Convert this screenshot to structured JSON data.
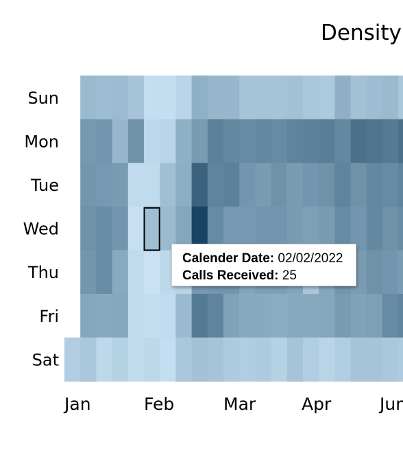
{
  "chart_data": {
    "type": "heatmap",
    "title": "Density",
    "y_categories": [
      "Sun",
      "Mon",
      "Tue",
      "Wed",
      "Thu",
      "Fri",
      "Sat"
    ],
    "x_tick_labels": [
      "Jan",
      "Feb",
      "Mar",
      "Apr",
      "Jun"
    ],
    "start_date": "2022-01-01",
    "color_scale": [
      "#cfe8fa",
      "#16425f"
    ],
    "value_range": [
      0,
      100
    ],
    "weeks": [
      [
        null,
        null,
        null,
        null,
        null,
        null,
        16
      ],
      [
        28,
        48,
        50,
        52,
        50,
        40,
        20
      ],
      [
        26,
        50,
        48,
        55,
        55,
        38,
        10
      ],
      [
        27,
        30,
        46,
        50,
        38,
        40,
        14
      ],
      [
        22,
        52,
        8,
        5,
        8,
        8,
        8
      ],
      [
        6,
        10,
        8,
        25,
        4,
        6,
        10
      ],
      [
        6,
        12,
        25,
        28,
        10,
        8,
        6
      ],
      [
        12,
        34,
        35,
        40,
        12,
        28,
        20
      ],
      [
        34,
        46,
        80,
        98,
        48,
        66,
        24
      ],
      [
        30,
        62,
        60,
        56,
        50,
        60,
        22
      ],
      [
        30,
        58,
        62,
        48,
        50,
        42,
        18
      ],
      [
        22,
        56,
        50,
        48,
        40,
        38,
        16
      ],
      [
        22,
        58,
        46,
        50,
        44,
        38,
        18
      ],
      [
        22,
        56,
        52,
        50,
        44,
        36,
        14
      ],
      [
        24,
        60,
        46,
        46,
        40,
        38,
        22
      ],
      [
        20,
        62,
        50,
        44,
        20,
        38,
        16
      ],
      [
        18,
        64,
        52,
        46,
        40,
        40,
        12
      ],
      [
        34,
        58,
        60,
        56,
        50,
        46,
        16
      ],
      [
        24,
        72,
        52,
        50,
        46,
        42,
        22
      ],
      [
        26,
        70,
        58,
        58,
        52,
        44,
        22
      ],
      [
        28,
        66,
        56,
        52,
        50,
        56,
        20
      ],
      [
        20,
        72,
        60,
        56,
        46,
        60,
        18
      ]
    ],
    "highlight_cell": {
      "date": "02/02/2022",
      "weekday": "Wed"
    }
  },
  "tooltip": {
    "date_label": "Calender Date:",
    "date_value": "02/02/2022",
    "calls_label": "Calls Received:",
    "calls_value": "25"
  }
}
